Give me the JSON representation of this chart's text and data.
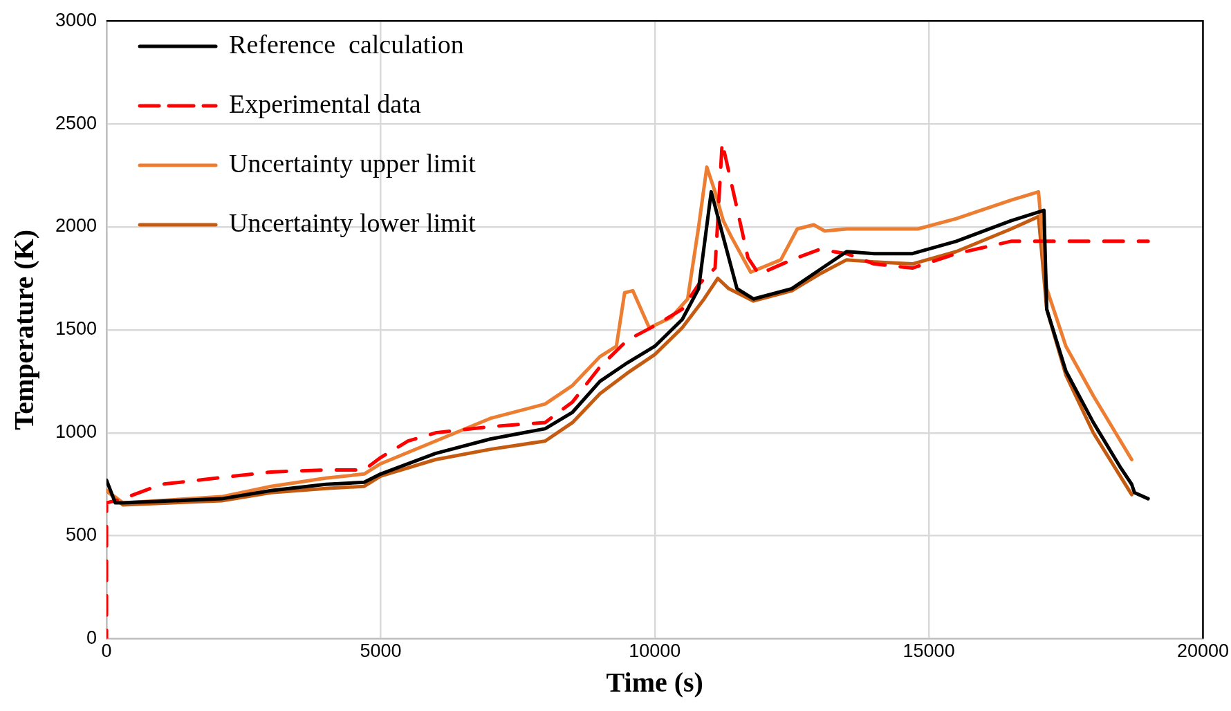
{
  "chart_data": {
    "type": "line",
    "xlabel": "Time (s)",
    "ylabel": "Temperature (K)",
    "xlim": [
      0,
      20000
    ],
    "xticks": [
      0,
      5000,
      10000,
      15000,
      20000
    ],
    "ylim": [
      0,
      3000
    ],
    "yticks": [
      0,
      500,
      1000,
      1500,
      2000,
      2500,
      3000
    ],
    "grid": true,
    "legend": "top left",
    "marker": "none",
    "series": [
      {
        "name": "Reference  calculation",
        "color": "#000000",
        "line_style": "solid",
        "x": [
          0,
          160,
          300,
          2100,
          3000,
          4000,
          4700,
          5000,
          6000,
          7000,
          8000,
          8500,
          9000,
          9500,
          10000,
          10500,
          10800,
          11030,
          11200,
          11500,
          11800,
          12500,
          13000,
          13500,
          14000,
          14700,
          15500,
          16500,
          17100,
          17150,
          17500,
          18000,
          18500,
          18700,
          18750,
          19000
        ],
        "values": [
          770,
          660,
          660,
          680,
          720,
          750,
          760,
          800,
          900,
          970,
          1020,
          1100,
          1250,
          1340,
          1420,
          1550,
          1700,
          2170,
          2000,
          1700,
          1650,
          1700,
          1790,
          1880,
          1870,
          1870,
          1930,
          2030,
          2080,
          1600,
          1300,
          1050,
          830,
          750,
          710,
          680
        ]
      },
      {
        "name": "Experimental data",
        "color": "#ff0000",
        "line_style": "dashed",
        "x": [
          0,
          0,
          300,
          1000,
          2000,
          3000,
          4000,
          4700,
          5000,
          5500,
          6000,
          7000,
          8000,
          8500,
          9000,
          9500,
          10000,
          10500,
          10800,
          11100,
          11230,
          11450,
          11700,
          11900,
          12500,
          13000,
          13500,
          14000,
          14700,
          15500,
          16000,
          16500,
          19000
        ],
        "values": [
          0,
          660,
          680,
          750,
          780,
          810,
          820,
          820,
          880,
          960,
          1000,
          1030,
          1050,
          1150,
          1320,
          1450,
          1520,
          1600,
          1720,
          1800,
          2410,
          2150,
          1850,
          1770,
          1840,
          1890,
          1870,
          1820,
          1800,
          1870,
          1900,
          1930,
          1930
        ]
      },
      {
        "name": "Uncertainty upper limit",
        "color": "#ed7d31",
        "line_style": "solid",
        "x": [
          0,
          300,
          2100,
          3000,
          4000,
          4700,
          5000,
          6000,
          7000,
          8000,
          8500,
          9000,
          9300,
          9450,
          9600,
          9700,
          9900,
          10300,
          10600,
          10800,
          10950,
          11100,
          11250,
          11400,
          11750,
          12300,
          12600,
          12900,
          13100,
          13500,
          14800,
          15500,
          16500,
          17000,
          17150,
          17500,
          18000,
          18700
        ],
        "values": [
          720,
          660,
          690,
          740,
          780,
          800,
          850,
          960,
          1070,
          1140,
          1230,
          1370,
          1420,
          1680,
          1690,
          1630,
          1510,
          1560,
          1650,
          2000,
          2290,
          2170,
          2030,
          1950,
          1780,
          1840,
          1990,
          2010,
          1980,
          1990,
          1990,
          2040,
          2130,
          2170,
          1700,
          1420,
          1180,
          870
        ]
      },
      {
        "name": "Uncertainty lower limit",
        "color": "#c55a11",
        "line_style": "solid",
        "x": [
          0,
          300,
          2100,
          3000,
          4000,
          4700,
          5000,
          6000,
          7000,
          8000,
          8500,
          9000,
          9500,
          10000,
          10500,
          10900,
          11150,
          11350,
          11800,
          12500,
          13000,
          13500,
          14000,
          14700,
          15500,
          16500,
          17000,
          17150,
          17500,
          18000,
          18700
        ],
        "values": [
          720,
          650,
          670,
          710,
          730,
          740,
          790,
          870,
          920,
          960,
          1050,
          1190,
          1290,
          1380,
          1510,
          1650,
          1750,
          1700,
          1640,
          1690,
          1770,
          1840,
          1830,
          1820,
          1880,
          1990,
          2050,
          1600,
          1280,
          1000,
          700
        ]
      }
    ]
  }
}
